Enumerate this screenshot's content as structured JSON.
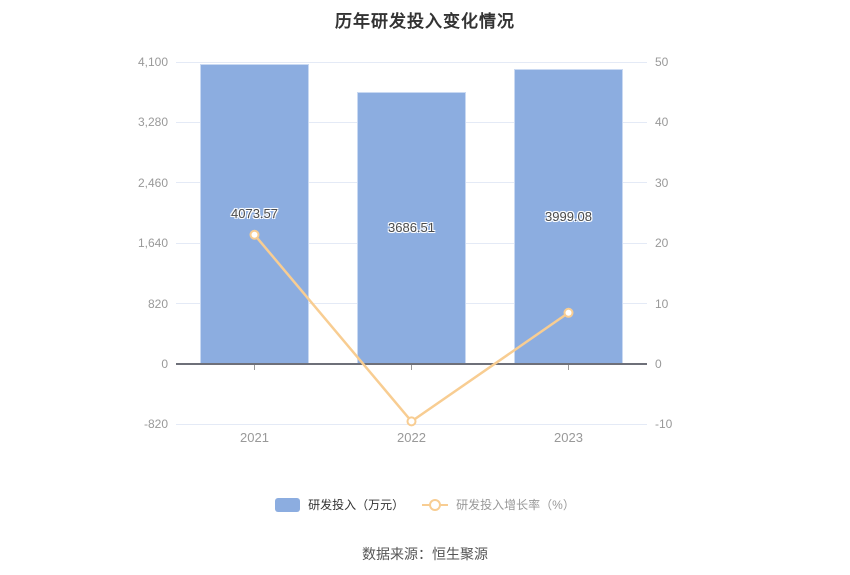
{
  "title": "历年研发投入变化情况",
  "source": "数据来源：恒生聚源",
  "legend": {
    "bar": {
      "label": "研发投入（万元）"
    },
    "line": {
      "label": "研发投入增长率（%）"
    }
  },
  "colors": {
    "bar": "#8CADE0",
    "bar_border": "#C9D9F2",
    "line": "#F8CD92",
    "grid": "#E4EAF6",
    "axis_line": "#6E7079",
    "axis_label": "#999999",
    "bar_label": "#4B4B4B",
    "title": "#333333",
    "legend_bar_text": "#333333",
    "legend_line_text": "#999999",
    "source_text": "#555555"
  },
  "chart_data": {
    "type": "bar+line combo",
    "title": "历年研发投入变化情况",
    "categories": [
      "2021",
      "2022",
      "2023"
    ],
    "series": [
      {
        "name": "研发投入（万元）",
        "type": "bar",
        "axis": "left",
        "values": [
          4073.57,
          3686.51,
          3999.08
        ],
        "labels": [
          "4073.57",
          "3686.51",
          "3999.08"
        ]
      },
      {
        "name": "研发投入增长率（%）",
        "type": "line",
        "axis": "right",
        "values": [
          21.4,
          -9.5,
          8.48
        ]
      }
    ],
    "left_axis": {
      "min": -820,
      "max": 4100,
      "tick_values": [
        4100,
        3280,
        2460,
        1640,
        820,
        0,
        -820
      ],
      "tick_labels": [
        "4,100",
        "3,280",
        "2,460",
        "1,640",
        "820",
        "0",
        "-820"
      ]
    },
    "right_axis": {
      "min": -10,
      "max": 50,
      "tick_values": [
        50,
        40,
        30,
        20,
        10,
        0,
        -10
      ],
      "tick_labels": [
        "50",
        "40",
        "30",
        "20",
        "10",
        "0",
        "-10"
      ]
    },
    "grid": true,
    "legend_position": "bottom"
  }
}
